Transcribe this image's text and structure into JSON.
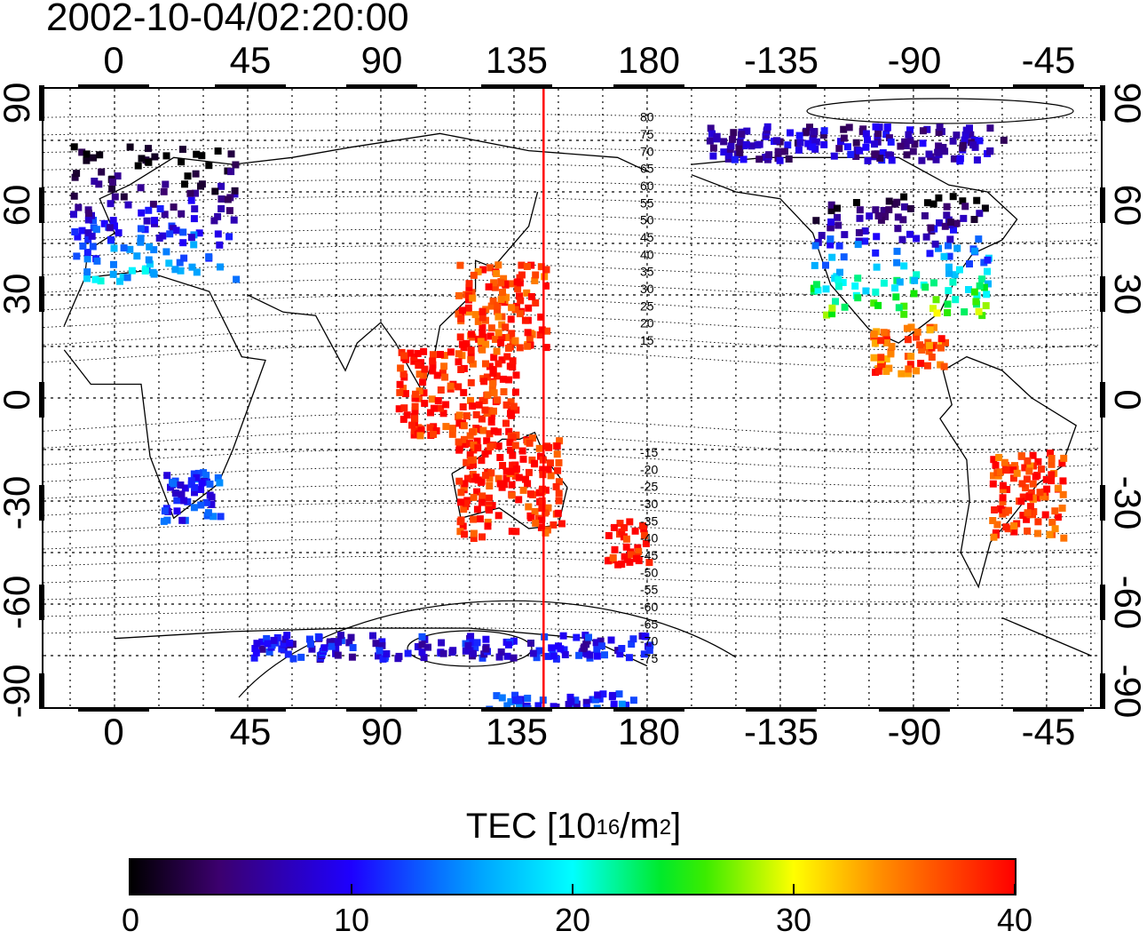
{
  "timestamp": "2002-10-04/02:20:00",
  "top_lon_labels": [
    "0",
    "45",
    "90",
    "135",
    "180",
    "-135",
    "-90",
    "-45"
  ],
  "bottom_lon_labels": [
    "0",
    "45",
    "90",
    "135",
    "180",
    "-135",
    "-90",
    "-45"
  ],
  "left_lat_labels": [
    "90",
    "60",
    "30",
    "0",
    "-30",
    "-60",
    "-90"
  ],
  "right_lat_labels": [
    "90",
    "60",
    "30",
    "0",
    "-30",
    "-60",
    "-90"
  ],
  "contour_labels": [
    "80",
    "75",
    "70",
    "65",
    "60",
    "55",
    "50",
    "45",
    "40",
    "35",
    "30",
    "25",
    "20",
    "15",
    "-15",
    "-20",
    "-25",
    "-30",
    "-35",
    "-40",
    "-45",
    "-50",
    "-55",
    "-60",
    "-65",
    "-70",
    "-75"
  ],
  "colorbar": {
    "title_main": "TEC  [10",
    "title_sup1": "16",
    "title_mid": "/m",
    "title_sup2": "2",
    "title_end": "]",
    "ticks": [
      "0",
      "10",
      "20",
      "30",
      "40"
    ],
    "min": 0,
    "max": 40
  },
  "colors": {
    "meridian_line": "#ff0000",
    "grid": "#000000"
  },
  "meridian_longitude": 145,
  "tec_regions": [
    {
      "name": "europe",
      "lon": [
        -15,
        40
      ],
      "lat": [
        35,
        75
      ],
      "tec": 8
    },
    {
      "name": "north-america",
      "lon": [
        -125,
        -65
      ],
      "lat": [
        25,
        60
      ],
      "tec": 14
    },
    {
      "name": "central-america",
      "lon": [
        -105,
        -80
      ],
      "lat": [
        8,
        22
      ],
      "tec": 36
    },
    {
      "name": "east-asia",
      "lon": [
        115,
        145
      ],
      "lat": [
        15,
        40
      ],
      "tec": 38
    },
    {
      "name": "southeast-asia",
      "lon": [
        95,
        135
      ],
      "lat": [
        -10,
        15
      ],
      "tec": 39
    },
    {
      "name": "australia",
      "lon": [
        115,
        150
      ],
      "lat": [
        -40,
        -10
      ],
      "tec": 39
    },
    {
      "name": "new-zealand",
      "lon": [
        165,
        180
      ],
      "lat": [
        -48,
        -35
      ],
      "tec": 40
    },
    {
      "name": "south-america",
      "lon": [
        -65,
        -40
      ],
      "lat": [
        -40,
        -15
      ],
      "tec": 38
    },
    {
      "name": "southern-africa",
      "lon": [
        15,
        35
      ],
      "lat": [
        -35,
        -20
      ],
      "tec": 11
    },
    {
      "name": "antarctic-rim",
      "lon": [
        45,
        180
      ],
      "lat": [
        -75,
        -68
      ],
      "tec": 9
    },
    {
      "name": "antarctic-pole",
      "lon": [
        125,
        175
      ],
      "lat": [
        -90,
        -85
      ],
      "tec": 11
    },
    {
      "name": "arctic-canada",
      "lon": [
        -160,
        -60
      ],
      "lat": [
        70,
        80
      ],
      "tec": 7
    }
  ]
}
